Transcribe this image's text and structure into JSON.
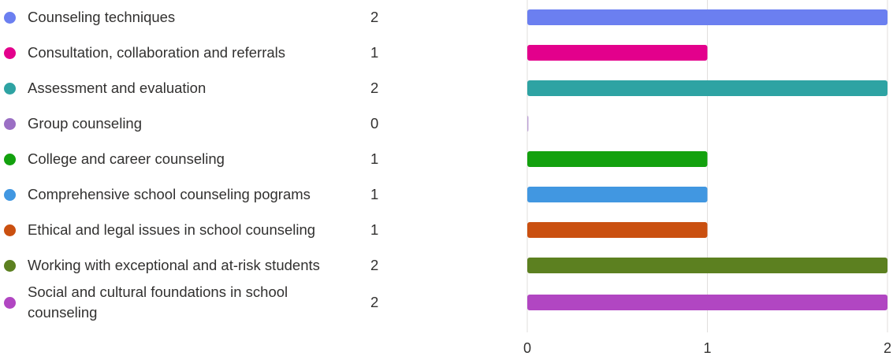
{
  "chart_data": {
    "type": "bar",
    "orientation": "horizontal",
    "categories": [
      "Counseling techniques",
      "Consultation, collaboration and referrals",
      "Assessment and evaluation",
      "Group counseling",
      "College and career counseling",
      "Comprehensive school counseling pograms",
      "Ethical and legal issues in school counseling",
      "Working with exceptional and at-risk students",
      "Social and cultural foundations in school counseling"
    ],
    "values": [
      2,
      1,
      2,
      0,
      1,
      1,
      1,
      2,
      2
    ],
    "colors": [
      "#6b7ff0",
      "#e3008c",
      "#2ea3a3",
      "#9b6fc4",
      "#13a10e",
      "#4197e1",
      "#ca5010",
      "#5c8020",
      "#b146c2"
    ],
    "xlim": [
      0,
      2
    ],
    "xticks": [
      "0",
      "1",
      "2"
    ],
    "grid": true,
    "title": "",
    "xlabel": "",
    "ylabel": ""
  }
}
